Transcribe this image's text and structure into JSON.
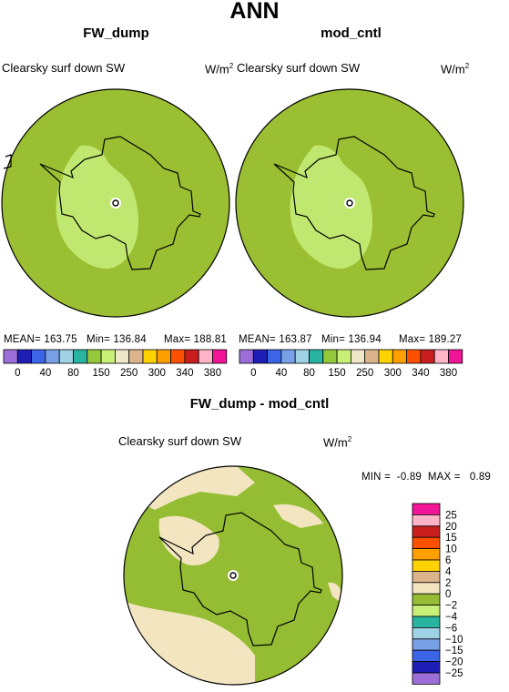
{
  "main_title": "ANN",
  "colors": {
    "background": "#ffffff",
    "map_base": "#9BBF32",
    "inner_region": "#C0E870",
    "diff_base": "#94BD33",
    "diff_pale": "#F2E5C0",
    "outline": "#000000"
  },
  "panels": [
    {
      "title": "FW_dump",
      "variable": "Clearsky surf down SW",
      "units_base": "W/m",
      "units_exp": "2",
      "stats": {
        "mean_label": "MEAN=",
        "mean": "163.75",
        "min_label": "Min=",
        "min": "136.84",
        "max_label": "Max=",
        "max": "188.81"
      }
    },
    {
      "title": "mod_cntl",
      "variable": "Clearsky surf down SW",
      "units_base": "W/m",
      "units_exp": "2",
      "stats": {
        "mean_label": "MEAN=",
        "mean": "163.87",
        "min_label": "Min=",
        "min": "136.94",
        "max_label": "Max=",
        "max": "189.27"
      }
    }
  ],
  "diff_panel": {
    "title": "FW_dump - mod_cntl",
    "variable": "Clearsky surf down SW",
    "units_base": "W/m",
    "units_exp": "2",
    "min_label": "MIN =",
    "min": "-0.89",
    "max_label": "MAX =",
    "max": "0.89"
  },
  "chart_data": [
    {
      "type": "heatmap",
      "projection": "polar stereographic",
      "title": "FW_dump",
      "colorbar": {
        "ticks": [
          "0",
          "40",
          "80",
          "150",
          "250",
          "300",
          "340",
          "380"
        ],
        "colors": [
          "#9B6ED8",
          "#1E1EB4",
          "#3C64E6",
          "#78A0E6",
          "#A0D2E6",
          "#28B4A0",
          "#96C83C",
          "#C8F078",
          "#F0E6C8",
          "#DCB48C",
          "#FFD200",
          "#FFA000",
          "#FF5000",
          "#C81E1E",
          "#FFB4C8",
          "#F01496"
        ]
      },
      "regions": [
        {
          "level": "150",
          "color": "#9BBF32",
          "area": "outer disk"
        },
        {
          "level": "140",
          "color": "#C0E870",
          "area": "interior"
        }
      ]
    },
    {
      "type": "heatmap",
      "projection": "polar stereographic",
      "title": "mod_cntl",
      "colorbar": {
        "ticks": [
          "0",
          "40",
          "80",
          "150",
          "250",
          "300",
          "340",
          "380"
        ],
        "colors": [
          "#9B6ED8",
          "#1E1EB4",
          "#3C64E6",
          "#78A0E6",
          "#A0D2E6",
          "#28B4A0",
          "#96C83C",
          "#C8F078",
          "#F0E6C8",
          "#DCB48C",
          "#FFD200",
          "#FFA000",
          "#FF5000",
          "#C81E1E",
          "#FFB4C8",
          "#F01496"
        ]
      },
      "regions": [
        {
          "level": "150",
          "color": "#9BBF32",
          "area": "outer disk"
        },
        {
          "level": "140",
          "color": "#C0E870",
          "area": "interior"
        }
      ]
    },
    {
      "type": "heatmap",
      "projection": "polar stereographic",
      "title": "FW_dump - mod_cntl",
      "colorbar": {
        "ticks": [
          "25",
          "20",
          "15",
          "10",
          "6",
          "4",
          "2",
          "0",
          "−2",
          "−4",
          "−6",
          "−10",
          "−15",
          "−20",
          "−25"
        ],
        "colors": [
          "#F01496",
          "#FFB4C8",
          "#C81E1E",
          "#FF5000",
          "#FFA000",
          "#FFD200",
          "#DCB48C",
          "#F2E5C0",
          "#94BD33",
          "#C8F078",
          "#28B4A0",
          "#A0D2E6",
          "#78A0E6",
          "#3C64E6",
          "#1E1EB4",
          "#9B6ED8"
        ]
      },
      "regions": [
        {
          "level": "-2 to 0",
          "color": "#94BD33",
          "area": "most of disk"
        },
        {
          "level": "0 to 2",
          "color": "#F2E5C0",
          "area": "patches"
        }
      ]
    }
  ]
}
